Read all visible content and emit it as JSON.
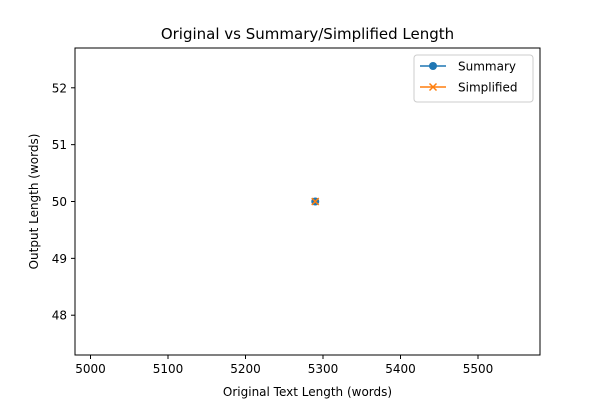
{
  "chart_data": {
    "type": "line",
    "title": "Original vs Summary/Simplified Length",
    "xlabel": "Original Text Length (words)",
    "ylabel": "Output Length (words)",
    "xlim": [
      4980,
      5580
    ],
    "ylim": [
      47.3,
      52.7
    ],
    "xticks": [
      5000,
      5100,
      5200,
      5300,
      5400,
      5500
    ],
    "yticks": [
      48,
      49,
      50,
      51,
      52
    ],
    "grid": false,
    "legend_position": "upper right",
    "series": [
      {
        "name": "Summary",
        "color": "#1f77b4",
        "marker": "circle",
        "points": [
          {
            "x": 5290,
            "y": 50
          }
        ]
      },
      {
        "name": "Simplified",
        "color": "#ff7f0e",
        "marker": "x",
        "points": [
          {
            "x": 5290,
            "y": 50
          }
        ]
      }
    ]
  }
}
